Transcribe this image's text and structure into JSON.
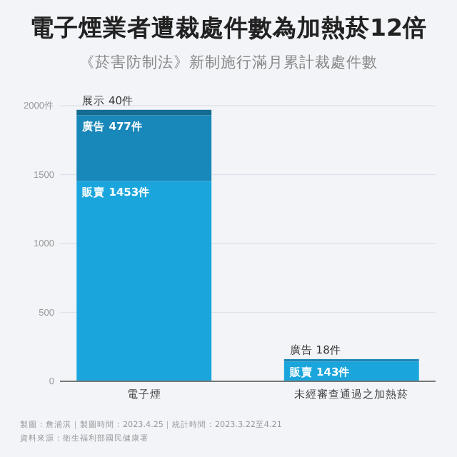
{
  "chart_data": {
    "type": "bar",
    "stacked": true,
    "title": "電子煙業者遭裁處件數為加熱菸12倍",
    "subtitle": "《菸害防制法》新制施行滿月累計裁處件數",
    "categories": [
      "電子煙",
      "未經審查通過之加熱菸"
    ],
    "series": [
      {
        "name": "販賣",
        "color": "#1aa6dc",
        "values": [
          1453,
          143
        ],
        "value_labels": [
          "1453件",
          "143件"
        ]
      },
      {
        "name": "廣告",
        "color": "#1887b9",
        "values": [
          477,
          18
        ],
        "value_labels": [
          "477件",
          "18件"
        ]
      },
      {
        "name": "展示",
        "color": "#146c92",
        "values": [
          40,
          null
        ],
        "value_labels": [
          "40件",
          null
        ]
      }
    ],
    "ylim": [
      0,
      2000
    ],
    "yticks": [
      0,
      500,
      1000,
      1500,
      {
        "value": 2000,
        "label": "2000件"
      }
    ],
    "grid": "y",
    "annotations": [
      "製圖：詹浦淇｜製圖時間：2023.4.25｜統計時間：2023.3.22至4.21",
      "資料來源：衛生福利部國民健康署"
    ]
  }
}
